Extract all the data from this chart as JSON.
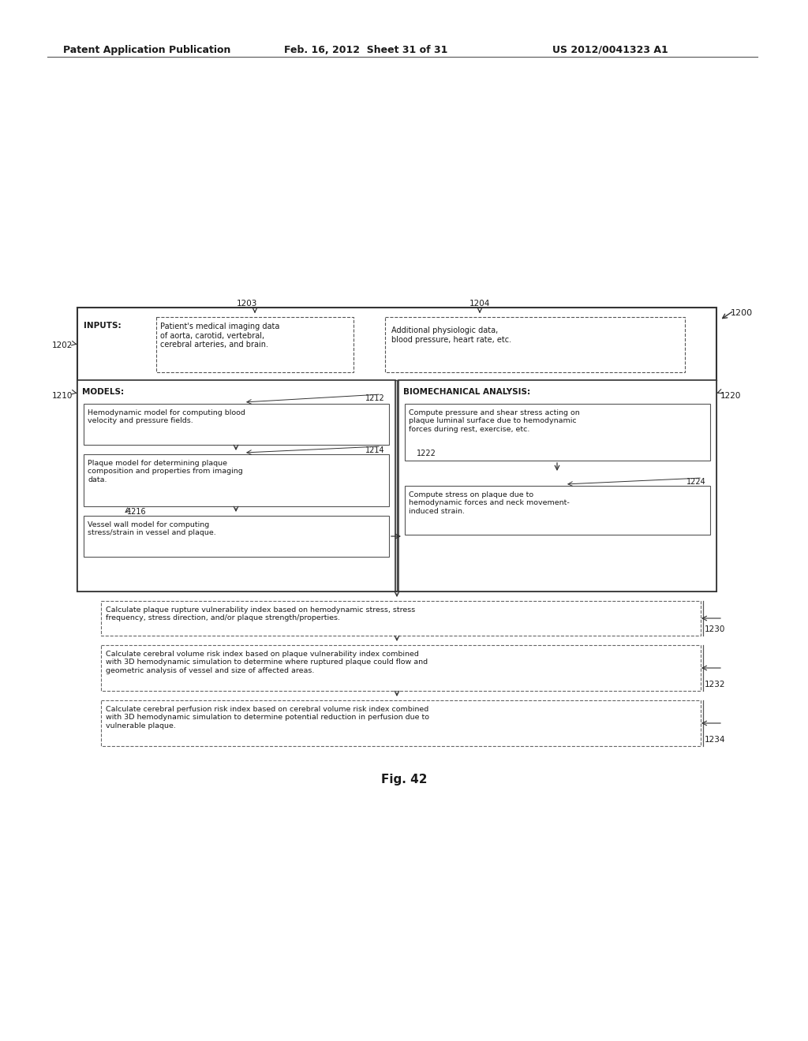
{
  "bg_color": "#ffffff",
  "header_line1": "Patent Application Publication",
  "header_line2": "Feb. 16, 2012  Sheet 31 of 31",
  "header_line3": "US 2012/0041323 A1",
  "figure_label": "Fig. 42",
  "outer_label": "1200",
  "inputs_label": "1202",
  "inputs_title": "INPUTS:",
  "box1203_label": "1203",
  "box1204_label": "1204",
  "box1203_text": "Patient's medical imaging data\nof aorta, carotid, vertebral,\ncerebral arteries, and brain.",
  "box1204_text": "Additional physiologic data,\nblood pressure, heart rate, etc.",
  "models_label": "1210",
  "models_title": "MODELS:",
  "bio_label": "1220",
  "bio_title": "BIOMECHANICAL ANALYSIS:",
  "box1212_label": "1212",
  "box1212_text": "Hemodynamic model for computing blood\nvelocity and pressure fields.",
  "box1214_label": "1214",
  "box1214_text": "Plaque model for determining plaque\ncomposition and properties from imaging\ndata.",
  "box1216_label": "1216",
  "box1216_text": "Vessel wall model for computing\nstress/strain in vessel and plaque.",
  "box1222_label": "1222",
  "box1222_text": "Compute pressure and shear stress acting on\nplaque luminal surface due to hemodynamic\nforces during rest, exercise, etc.",
  "box1224_label": "1224",
  "box1224_text": "Compute stress on plaque due to\nhemodynamic forces and neck movement-\ninduced strain.",
  "box1230_label": "1230",
  "box1230_text": "Calculate plaque rupture vulnerability index based on hemodynamic stress, stress\nfrequency, stress direction, and/or plaque strength/properties.",
  "box1232_label": "1232",
  "box1232_text": "Calculate cerebral volume risk index based on plaque vulnerability index combined\nwith 3D hemodynamic simulation to determine where ruptured plaque could flow and\ngeometric analysis of vessel and size of affected areas.",
  "box1234_label": "1234",
  "box1234_text": "Calculate cerebral perfusion risk index based on cerebral volume risk index combined\nwith 3D hemodynamic simulation to determine potential reduction in perfusion due to\nvulnerable plaque."
}
